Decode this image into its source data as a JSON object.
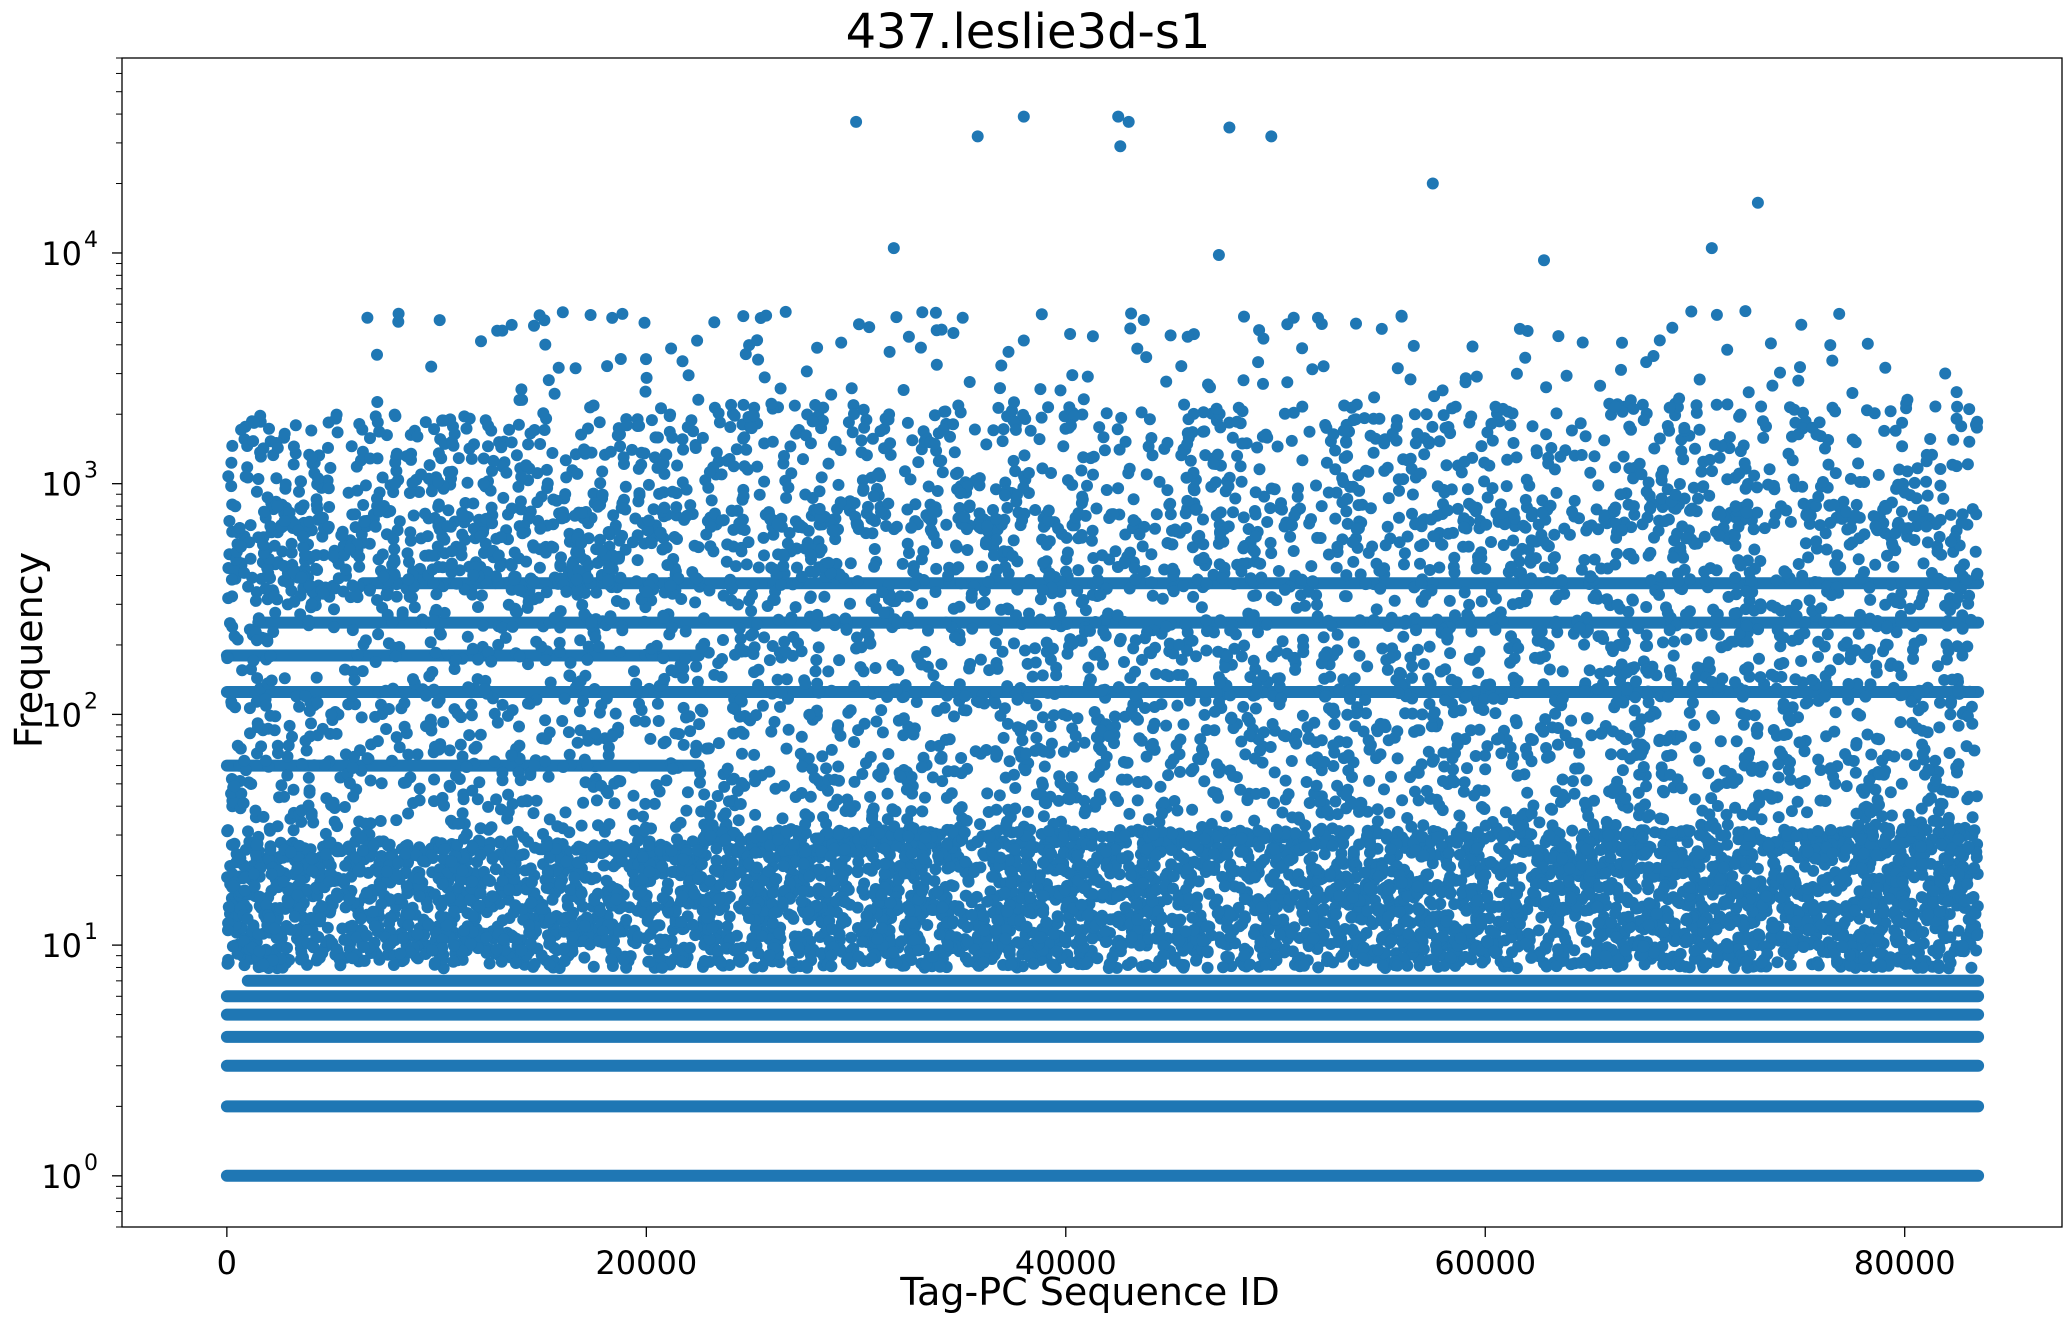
{
  "chart_data": {
    "type": "scatter",
    "title": "437.leslie3d-s1",
    "xlabel": "Tag-PC Sequence ID",
    "ylabel": "Frequency",
    "xlim": [
      -5000,
      87500
    ],
    "ylim": [
      0.6,
      70000
    ],
    "yscale": "log",
    "grid": false,
    "legend": "none",
    "marker_color": "#1f77b4",
    "x_ticks": [
      {
        "value": 0,
        "label": "0"
      },
      {
        "value": 20000,
        "label": "20000"
      },
      {
        "value": 40000,
        "label": "40000"
      },
      {
        "value": 60000,
        "label": "60000"
      },
      {
        "value": 80000,
        "label": "80000"
      }
    ],
    "y_ticks": [
      {
        "value": 1,
        "base": "10",
        "exp": "0"
      },
      {
        "value": 10,
        "base": "10",
        "exp": "1"
      },
      {
        "value": 100,
        "base": "10",
        "exp": "2"
      },
      {
        "value": 1000,
        "base": "10",
        "exp": "3"
      },
      {
        "value": 10000,
        "base": "10",
        "exp": "4"
      }
    ],
    "x_range_of_points": [
      0,
      83500
    ],
    "horizontal_bands": [
      {
        "y": 1,
        "x_range": [
          0,
          83500
        ]
      },
      {
        "y": 2,
        "x_range": [
          0,
          83500
        ]
      },
      {
        "y": 3,
        "x_range": [
          0,
          83500
        ]
      },
      {
        "y": 4,
        "x_range": [
          0,
          83500
        ]
      },
      {
        "y": 5,
        "x_range": [
          0,
          83500
        ]
      },
      {
        "y": 6,
        "x_range": [
          0,
          83500
        ]
      },
      {
        "y": 7,
        "x_range": [
          1000,
          83500
        ]
      },
      {
        "y": 60,
        "x_range": [
          0,
          22500
        ]
      },
      {
        "y": 125,
        "x_range": [
          0,
          83500
        ]
      },
      {
        "y": 180,
        "x_range": [
          0,
          22500
        ]
      },
      {
        "y": 250,
        "x_range": [
          1500,
          83500
        ]
      },
      {
        "y": 370,
        "x_range": [
          6500,
          83500
        ]
      }
    ],
    "outlier_points": [
      {
        "x": 30000,
        "y": 37000
      },
      {
        "x": 35800,
        "y": 32000
      },
      {
        "x": 38000,
        "y": 39000
      },
      {
        "x": 42500,
        "y": 39000
      },
      {
        "x": 43000,
        "y": 37000
      },
      {
        "x": 42600,
        "y": 29000
      },
      {
        "x": 47800,
        "y": 35000
      },
      {
        "x": 49800,
        "y": 32000
      },
      {
        "x": 57500,
        "y": 20000
      },
      {
        "x": 73000,
        "y": 16500
      },
      {
        "x": 31800,
        "y": 10500
      },
      {
        "x": 47300,
        "y": 9800
      },
      {
        "x": 62800,
        "y": 9300
      },
      {
        "x": 70800,
        "y": 10500
      }
    ]
  }
}
